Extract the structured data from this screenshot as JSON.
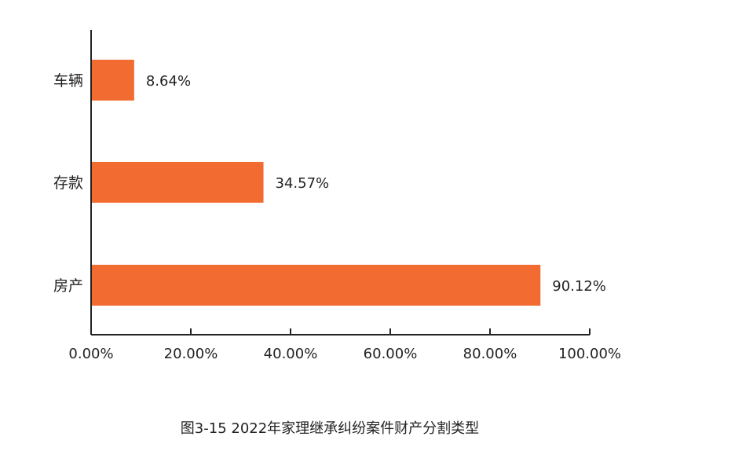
{
  "chart_data": {
    "type": "bar",
    "orientation": "horizontal",
    "categories": [
      "车辆",
      "存款",
      "房产"
    ],
    "values": [
      8.64,
      34.57,
      90.12
    ],
    "value_labels": [
      "8.64%",
      "34.57%",
      "90.12%"
    ],
    "xlim": [
      0,
      100
    ],
    "x_ticks": [
      0,
      20,
      40,
      60,
      80,
      100
    ],
    "x_tick_labels": [
      "0.00%",
      "20.00%",
      "40.00%",
      "60.00%",
      "80.00%",
      "100.00%"
    ],
    "bar_color": "#F26B31",
    "grid": false,
    "legend": "none",
    "title": "图3-15  2022年家理继承纠纷案件财产分割类型",
    "xlabel": "",
    "ylabel": ""
  }
}
